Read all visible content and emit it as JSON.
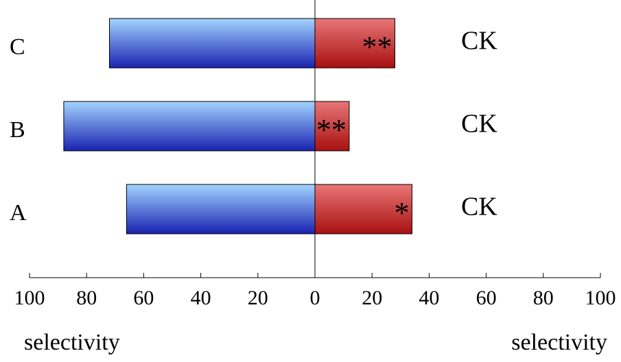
{
  "chart_data": {
    "type": "diverging-bar",
    "categories": [
      "A",
      "B",
      "C"
    ],
    "series": [
      {
        "values": [
          -66,
          -88,
          -72
        ],
        "gradient": [
          "#a2d4ff",
          "#1a22b0"
        ]
      },
      {
        "values": [
          34,
          12,
          28
        ],
        "gradient": [
          "#e87676",
          "#a81010"
        ]
      }
    ],
    "annotations": [
      "*",
      "**",
      "**"
    ],
    "side_labels": [
      "CK",
      "CK",
      "CK"
    ],
    "xlim": [
      -100,
      100
    ],
    "xticks": [
      {
        "value": -100,
        "label": "100"
      },
      {
        "value": -80,
        "label": "80"
      },
      {
        "value": -60,
        "label": "60"
      },
      {
        "value": -40,
        "label": "40"
      },
      {
        "value": -20,
        "label": "20"
      },
      0,
      20,
      40,
      60,
      80,
      100
    ],
    "x_label_left": "selectivity",
    "x_label_right": "selectivity"
  }
}
